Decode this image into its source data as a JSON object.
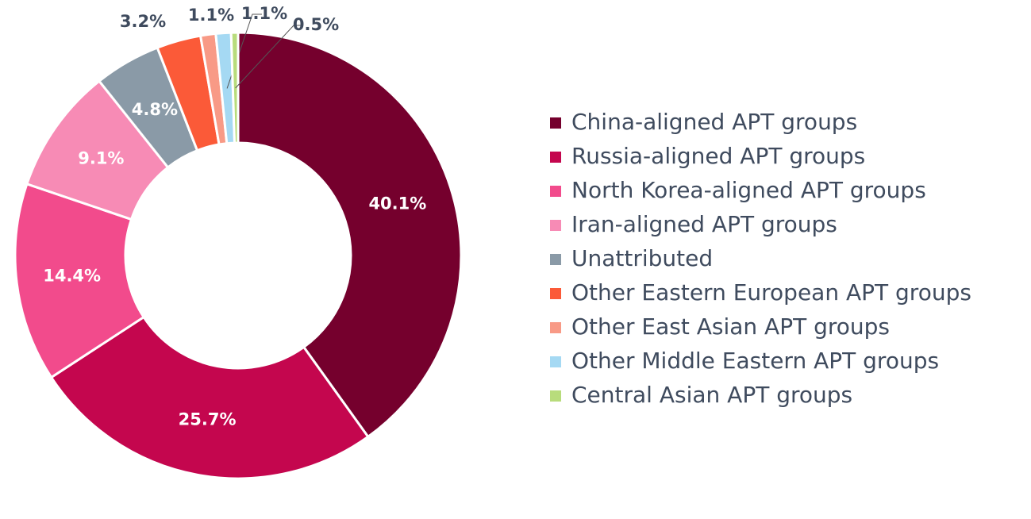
{
  "chart_data": {
    "type": "donut",
    "categories": [
      "China-aligned APT groups",
      "Russia-aligned APT groups",
      "North Korea-aligned APT groups",
      "Iran-aligned APT groups",
      "Unattributed",
      "Other Eastern European APT groups",
      "Other East Asian APT groups",
      "Other Middle Eastern APT groups",
      "Central Asian APT groups"
    ],
    "values": [
      40.1,
      25.7,
      14.4,
      9.1,
      4.8,
      3.2,
      1.1,
      1.1,
      0.5
    ],
    "value_labels": [
      "40.1%",
      "25.7%",
      "14.4%",
      "9.1%",
      "4.8%",
      "3.2%",
      "1.1%",
      "1.1%",
      "0.5%"
    ],
    "colors": [
      "#75002d",
      "#c4064e",
      "#f24b8c",
      "#f78bb5",
      "#8a9aa7",
      "#fb5a38",
      "#f89a86",
      "#a5d9f3",
      "#b8dc7c"
    ],
    "legend": "right"
  }
}
